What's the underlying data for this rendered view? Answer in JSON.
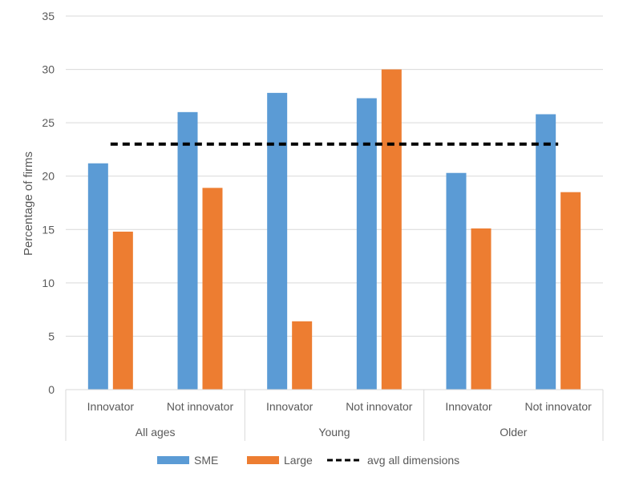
{
  "chart_data": {
    "type": "bar",
    "ylabel": "Percentage of firms",
    "ylim": [
      0,
      35
    ],
    "yticks": [
      0,
      5,
      10,
      15,
      20,
      25,
      30,
      35
    ],
    "grid": true,
    "legend_position": "bottom",
    "groups": [
      {
        "label": "All ages",
        "categories": [
          "Innovator",
          "Not innovator"
        ]
      },
      {
        "label": "Young",
        "categories": [
          "Innovator",
          "Not innovator"
        ]
      },
      {
        "label": "Older",
        "categories": [
          "Innovator",
          "Not innovator"
        ]
      }
    ],
    "series": [
      {
        "name": "SME",
        "color": "#5B9BD5",
        "values": [
          21.2,
          26.0,
          27.8,
          27.3,
          20.3,
          25.8
        ]
      },
      {
        "name": "Large",
        "color": "#ED7D31",
        "values": [
          14.8,
          18.9,
          6.4,
          30.0,
          15.1,
          18.5
        ]
      }
    ],
    "reference_line": {
      "name": "avg all dimensions",
      "value": 23.0,
      "color": "#000000",
      "style": "dashed"
    }
  }
}
